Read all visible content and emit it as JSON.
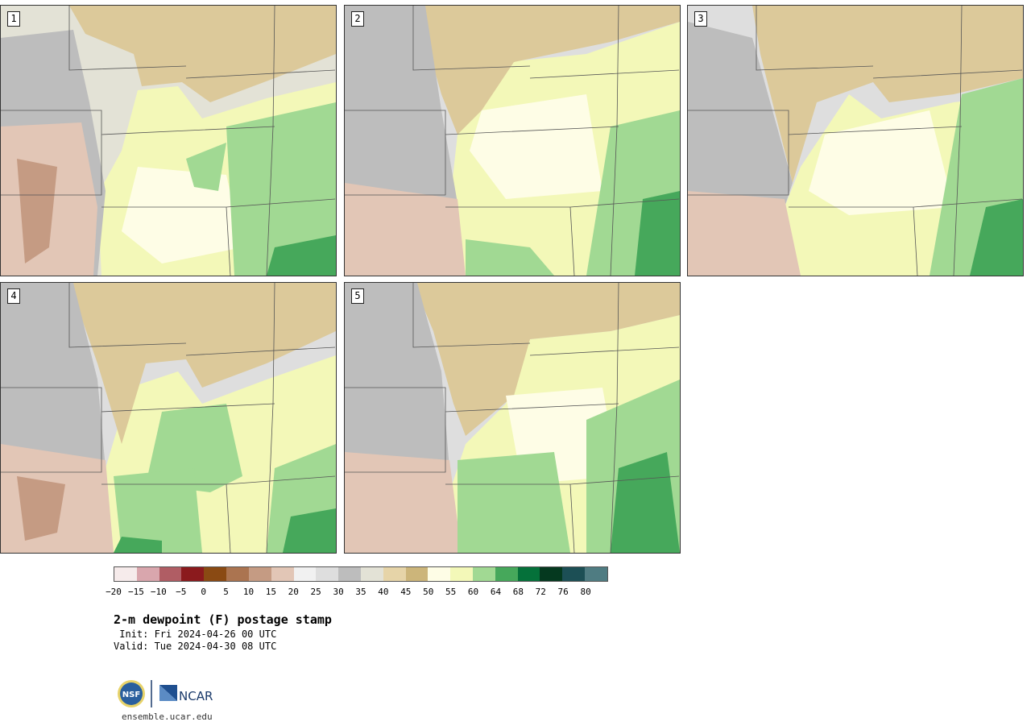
{
  "panels": [
    {
      "label": "1"
    },
    {
      "label": "2"
    },
    {
      "label": "3"
    },
    {
      "label": "4"
    },
    {
      "label": "5"
    }
  ],
  "colorbar": {
    "ticks": [
      "−20",
      "−15",
      "−10",
      "−5",
      "0",
      "5",
      "10",
      "15",
      "20",
      "25",
      "30",
      "35",
      "40",
      "45",
      "50",
      "55",
      "60",
      "64",
      "68",
      "72",
      "76",
      "80"
    ],
    "colors": [
      "#f6ebeb",
      "#d9a6ad",
      "#b05d64",
      "#8b1a1d",
      "#8a4a13",
      "#ab7450",
      "#c59b83",
      "#e2c6b6",
      "#f1f1f1",
      "#dedede",
      "#bdbdbd",
      "#e3e2d6",
      "#e6d4a8",
      "#ccb57a",
      "#fefde6",
      "#f3f8b8",
      "#a1d993",
      "#46a85b",
      "#05713a",
      "#05391f",
      "#1c4f55",
      "#4f7c82"
    ]
  },
  "title": "2-m dewpoint (F) postage stamp",
  "init": " Init: Fri 2024-04-26 00 UTC",
  "valid": "Valid: Tue 2024-04-30 08 UTC",
  "logo": {
    "nsf": "NSF",
    "ncar": "NCAR"
  },
  "site": "ensemble.ucar.edu"
}
